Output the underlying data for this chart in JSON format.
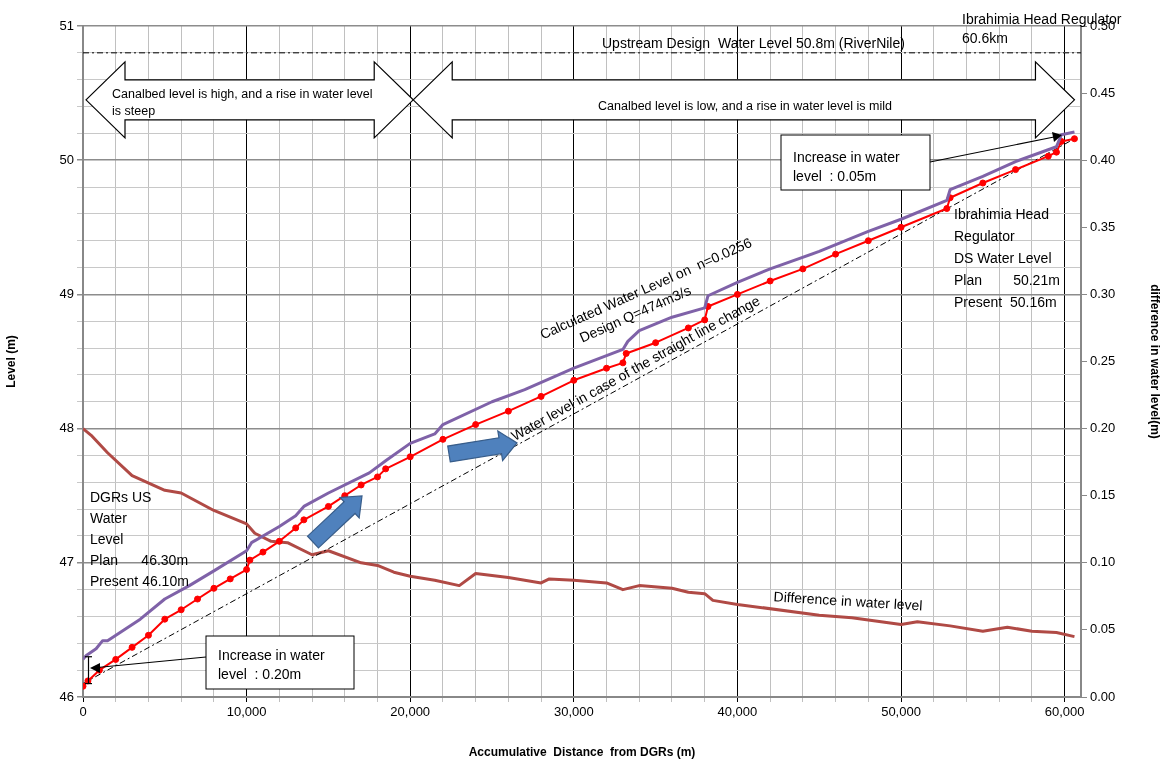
{
  "chart_data": {
    "type": "line",
    "xlabel": "Accumulative  Distance  from DGRs (m)",
    "ylabel": "Level (m)",
    "y2label": "difference in water level(m)",
    "xlim": [
      0,
      61000
    ],
    "xticks": [
      0,
      {
        "value": 2000,
        "label": null
      },
      {
        "value": 4000,
        "label": null
      },
      {
        "value": 6000,
        "label": null
      },
      {
        "value": 8000,
        "label": null
      },
      {
        "value": 10000,
        "label": "10,000"
      },
      {
        "value": 12000,
        "label": null
      },
      {
        "value": 14000,
        "label": null
      },
      {
        "value": 16000,
        "label": null
      },
      {
        "value": 18000,
        "label": null
      },
      {
        "value": 20000,
        "label": "20,000"
      },
      {
        "value": 22000,
        "label": null
      },
      {
        "value": 24000,
        "label": null
      },
      {
        "value": 26000,
        "label": null
      },
      {
        "value": 28000,
        "label": null
      },
      {
        "value": 30000,
        "label": "30,000"
      },
      {
        "value": 32000,
        "label": null
      },
      {
        "value": 34000,
        "label": null
      },
      {
        "value": 36000,
        "label": null
      },
      {
        "value": 38000,
        "label": null
      },
      {
        "value": 40000,
        "label": "40,000"
      },
      {
        "value": 42000,
        "label": null
      },
      {
        "value": 44000,
        "label": null
      },
      {
        "value": 46000,
        "label": null
      },
      {
        "value": 48000,
        "label": null
      },
      {
        "value": 50000,
        "label": "50,000"
      },
      {
        "value": 52000,
        "label": null
      },
      {
        "value": 54000,
        "label": null
      },
      {
        "value": 56000,
        "label": null
      },
      {
        "value": 58000,
        "label": null
      },
      {
        "value": 60000,
        "label": "60,000"
      }
    ],
    "ylim": [
      46,
      51
    ],
    "yticks": [
      46,
      {
        "value": 46.2,
        "label": null
      },
      {
        "value": 46.4,
        "label": null
      },
      {
        "value": 46.6,
        "label": null
      },
      {
        "value": 46.8,
        "label": null
      },
      47,
      {
        "value": 47.2,
        "label": null
      },
      {
        "value": 47.4,
        "label": null
      },
      {
        "value": 47.6,
        "label": null
      },
      {
        "value": 47.8,
        "label": null
      },
      48,
      {
        "value": 48.2,
        "label": null
      },
      {
        "value": 48.4,
        "label": null
      },
      {
        "value": 48.6,
        "label": null
      },
      {
        "value": 48.8,
        "label": null
      },
      49,
      {
        "value": 49.2,
        "label": null
      },
      {
        "value": 49.4,
        "label": null
      },
      {
        "value": 49.6,
        "label": null
      },
      {
        "value": 49.8,
        "label": null
      },
      50,
      {
        "value": 50.2,
        "label": null
      },
      {
        "value": 50.4,
        "label": null
      },
      {
        "value": 50.6,
        "label": null
      },
      {
        "value": 50.8,
        "label": null
      },
      51
    ],
    "y2lim": [
      0,
      0.5
    ],
    "y2ticks": [
      {
        "value": 0,
        "label": "0.00"
      },
      {
        "value": 0.05,
        "label": "0.05"
      },
      {
        "value": 0.1,
        "label": "0.10"
      },
      {
        "value": 0.15,
        "label": "0.15"
      },
      {
        "value": 0.2,
        "label": "0.20"
      },
      {
        "value": 0.25,
        "label": "0.25"
      },
      {
        "value": 0.3,
        "label": "0.30"
      },
      {
        "value": 0.35,
        "label": "0.35"
      },
      {
        "value": 0.4,
        "label": "0.40"
      },
      {
        "value": 0.45,
        "label": "0.45"
      },
      {
        "value": 0.5,
        "label": "0.50"
      }
    ],
    "grid": true,
    "legend": false,
    "series": [
      {
        "name": "Calculated Water Level on  n=0.0256\nDesign Q=474m3/s",
        "color": "#7f62a8",
        "marker": "none",
        "x": [
          0,
          200,
          800,
          1200,
          1500,
          2500,
          3500,
          5000,
          6500,
          8000,
          10000,
          10300,
          12000,
          13000,
          13500,
          15000,
          17500,
          18500,
          20000,
          21500,
          22000,
          25000,
          27000,
          30000,
          33000,
          33300,
          34000,
          36000,
          38000,
          38200,
          40000,
          42000,
          45000,
          48000,
          50000,
          52800,
          53000,
          55000,
          57000,
          59500,
          59800,
          60600
        ],
        "values": [
          46.28,
          46.31,
          46.36,
          46.42,
          46.42,
          46.5,
          46.58,
          46.73,
          46.83,
          46.94,
          47.09,
          47.15,
          47.27,
          47.35,
          47.42,
          47.52,
          47.67,
          47.76,
          47.89,
          47.96,
          48.03,
          48.2,
          48.29,
          48.45,
          48.59,
          48.65,
          48.73,
          48.83,
          48.9,
          48.99,
          49.09,
          49.19,
          49.32,
          49.47,
          49.56,
          49.7,
          49.78,
          49.88,
          49.99,
          50.1,
          50.19,
          50.21
        ]
      },
      {
        "color": "#ff0000",
        "marker": "circle",
        "x": [
          0,
          300,
          1000,
          2000,
          3000,
          4000,
          5000,
          6000,
          7000,
          8000,
          9000,
          10000,
          10200,
          11000,
          12000,
          13000,
          13500,
          15000,
          16000,
          17000,
          18000,
          18500,
          20000,
          22000,
          24000,
          26000,
          28000,
          30000,
          32000,
          33000,
          33200,
          35000,
          37000,
          38000,
          38200,
          40000,
          42000,
          44000,
          46000,
          48000,
          50000,
          52800,
          53000,
          55000,
          57000,
          59000,
          59500,
          59800,
          60600
        ],
        "values": [
          46.08,
          46.12,
          46.2,
          46.28,
          46.37,
          46.46,
          46.58,
          46.65,
          46.73,
          46.81,
          46.88,
          46.95,
          47.02,
          47.08,
          47.16,
          47.26,
          47.32,
          47.42,
          47.5,
          47.58,
          47.64,
          47.7,
          47.79,
          47.92,
          48.03,
          48.13,
          48.24,
          48.36,
          48.45,
          48.49,
          48.56,
          48.64,
          48.75,
          48.81,
          48.91,
          49.0,
          49.1,
          49.19,
          49.3,
          49.4,
          49.5,
          49.64,
          49.72,
          49.83,
          49.93,
          50.03,
          50.06,
          50.14,
          50.16
        ]
      },
      {
        "name": "Water level in case of the straight line change",
        "color": "#000000",
        "marker": "none",
        "line_style": "dashed",
        "x": [
          0,
          60600
        ],
        "values": [
          46.1,
          50.16
        ]
      },
      {
        "name": "Difference in water level",
        "color": "#b04a45",
        "marker": "none",
        "axis": "y2",
        "x": [
          0,
          500,
          1500,
          3000,
          5000,
          6000,
          8000,
          10000,
          10500,
          11500,
          12500,
          14000,
          15000,
          17000,
          18000,
          19000,
          20000,
          21500,
          23000,
          24000,
          26000,
          28000,
          28500,
          30000,
          32000,
          33000,
          34000,
          36000,
          37000,
          38000,
          38500,
          40000,
          45000,
          47000,
          50000,
          51000,
          53000,
          55000,
          56500,
          58000,
          59500,
          60600
        ],
        "values": [
          0.2,
          0.195,
          0.182,
          0.165,
          0.154,
          0.152,
          0.139,
          0.129,
          0.122,
          0.116,
          0.115,
          0.106,
          0.109,
          0.1,
          0.098,
          0.093,
          0.09,
          0.087,
          0.083,
          0.092,
          0.089,
          0.085,
          0.088,
          0.087,
          0.085,
          0.08,
          0.083,
          0.081,
          0.078,
          0.077,
          0.072,
          0.069,
          0.061,
          0.059,
          0.054,
          0.056,
          0.053,
          0.049,
          0.052,
          0.049,
          0.048,
          0.045
        ]
      }
    ],
    "ref_lines": [
      {
        "axis": "y",
        "value": 50.8,
        "label": "Upstream Design  Water Level 50.8m (RiverNile)",
        "color": "#000000",
        "line_style": "dashed"
      }
    ],
    "annotations": [
      "Canalbed level is high, and a rise in water level is steep",
      "Canalbed level is low, and a rise in water level is mild",
      "Ibrahimia Head Regulator\n60.6km",
      "Increase in water\nlevel  : 0.05m",
      "Ibrahimia Head\nRegulator\nDS Water Level\nPlan        50.21m\nPresent  50.16m",
      "DGRs US\nWater\nLevel\nPlan      46.30m\nPresent 46.10m",
      "Increase in water\nlevel  : 0.20m"
    ]
  }
}
